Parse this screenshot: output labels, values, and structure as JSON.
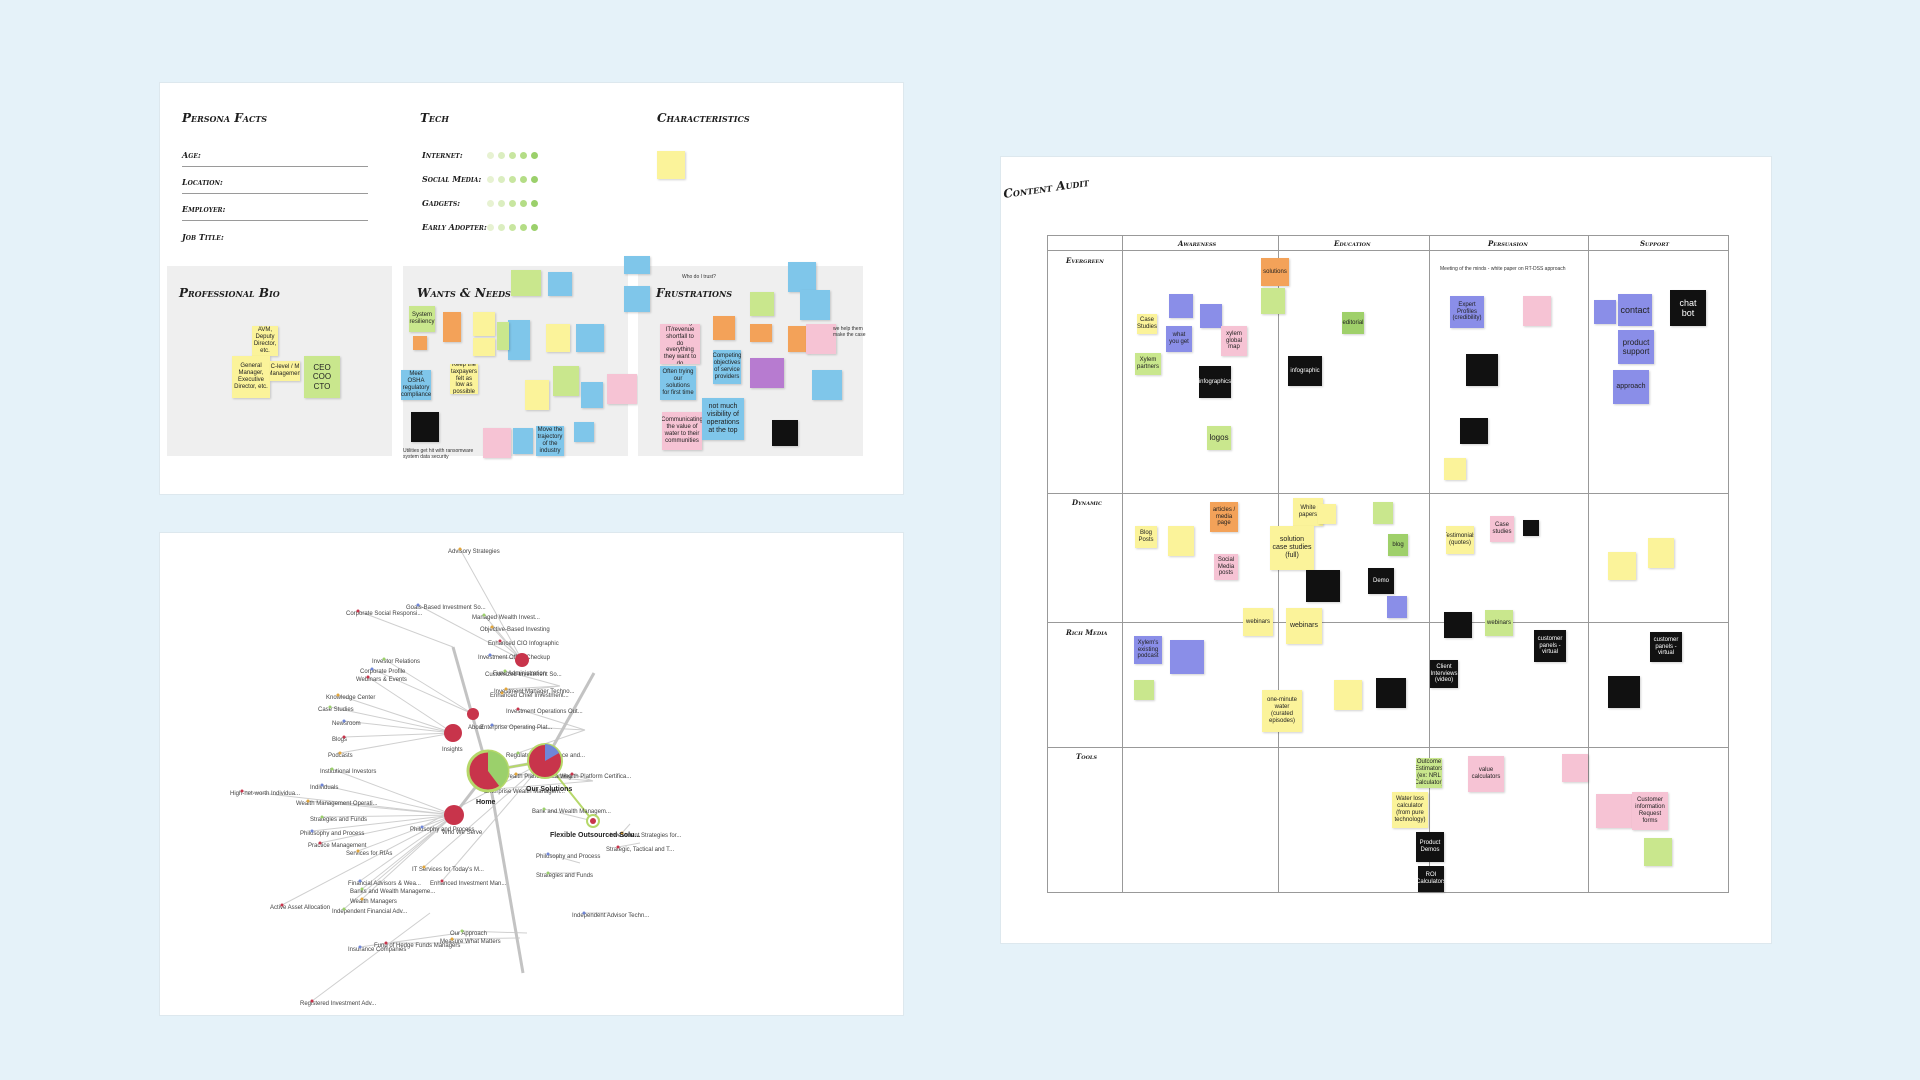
{
  "persona": {
    "facts_title": "Persona Facts",
    "facts": [
      "Age:",
      "Location:",
      "Employer:",
      "Job Title:"
    ],
    "tech_title": "Tech",
    "tech": [
      {
        "label": "Internet:",
        "level": 5
      },
      {
        "label": "Social Media:",
        "level": 5
      },
      {
        "label": "Gadgets:",
        "level": 5
      },
      {
        "label": "Early Adopter:",
        "level": 5
      }
    ],
    "characteristics_title": "Characteristics",
    "bio_title": "Professional Bio",
    "wants_title": "Wants & Needs",
    "frustrations_title": "Frustrations",
    "bio_notes": [
      "AVM, Deputy Director, etc.",
      "General Manager, Executive Director, etc.",
      "C-level / M Management",
      "CEO COO CTO"
    ],
    "wants_notes": [
      "System resiliency",
      "Meet OSHA regulatory compliance",
      "Keep the taxpayers felt as low as possible",
      "Move the trajectory of the industry"
    ],
    "frustrations_notes": [
      "Not enough IT/revenue shortfall to do everything they want to do",
      "Often trying our solutions for first time",
      "Communicating the value of water to their communities",
      "Competing objectives of service providers",
      "not much visibility of operations at the top"
    ],
    "wants_footnote": "Utilities get hit with ransomware system data security",
    "frustrations_header_note": "Who do I trust?",
    "frustrations_side_note": "we help them make the case"
  },
  "sitemap": {
    "center": "Home",
    "hubs": [
      "Our Solutions",
      "Insights",
      "Who We Serve",
      "About",
      "Flexible Outsourced Solu...",
      "Customized Investment So..."
    ],
    "labels": [
      "Advisory Strategies",
      "Corporate Social Responsi...",
      "Goals-Based Investment So...",
      "Managed Wealth Invest...",
      "Objective-Based Investing",
      "Enhanced CIO Infographic",
      "Investment Office Checkup",
      "Fund Administration",
      "Investment Manager Techno...",
      "Investment Operations Out...",
      "Enterprise Operating Plat...",
      "Regulatory Compliance and...",
      "Wealth Platform Learning",
      "Wealth Platform Certifica...",
      "Enterprise Wealth Managem...",
      "Bank and Wealth Managem...",
      "Investment Strategies for...",
      "Strategic, Tactical and T...",
      "Philosophy and Process",
      "Strategies and Funds",
      "IT Services for Today's M...",
      "Enhanced Investment Man...",
      "Independent Advisor Techn...",
      "Our Approach",
      "Measure What Matters",
      "Fund of Hedge Funds Managers",
      "Insurance Companies",
      "Independent Financial Adv...",
      "Wealth Managers",
      "Registered Investment Adv...",
      "Financial Advisors & Wea...",
      "Banks and Wealth Manageme...",
      "Services for RIAs",
      "Practice Management",
      "Philosophy and Process",
      "Strategies and Funds",
      "Wealth Management Operati...",
      "High-net-worth Individua...",
      "Individuals",
      "Institutional Investors",
      "Podcasts",
      "Blogs",
      "Newsroom",
      "Case Studies",
      "Knowledge Center",
      "Webinars & Events",
      "Corporate Profile",
      "Investor Relations",
      "Enhanced Chief Investment...",
      "Active Asset Allocation",
      "Philosophy and Process"
    ]
  },
  "audit": {
    "title": "Content Audit",
    "columns": [
      "Awareness",
      "Education",
      "Persuasion",
      "Support"
    ],
    "rows": [
      "Evergreen",
      "Dynamic",
      "Rich Media",
      "Tools"
    ],
    "header_note": "Meeting of the minds - white paper on RT-DSS approach",
    "notes": {
      "solutions": "solutions",
      "logos": "logos",
      "infographics": "infographics",
      "infographic": "infographic",
      "contact": "contact",
      "chat_bot": "chat bot",
      "product_support": "product support",
      "approach": "approach",
      "expert_profiles": "Expert Profiles (credibility)",
      "xylem_global_map": "xylem global map",
      "what_you_get": "what you get",
      "editorial": "editorial",
      "xylem_partners": "Xylem partners",
      "case_studies": "Case Studies",
      "articles": "articles / media page",
      "white_papers": "White papers",
      "blog_posts": "Blog Posts",
      "solution_case_studies": "solution case studies (full)",
      "blog": "blog",
      "demo": "Demo",
      "social_media_posts": "Social Media posts",
      "webinars": "webinars",
      "xylem_existing_podcast": "Xylem's existing podcast",
      "one_minute_water": "one-minute water (curated episodes)",
      "customer_panels": "customer panels - virtual",
      "client_interviews": "Client Interviews (video)",
      "value_calculators": "value calculators",
      "water_loss_calculator": "Water loss calculator (from pure technology)",
      "product_demos": "Product Demos",
      "customer_info_request": "Customer information Request forms",
      "outcome_estimators": "Outcome Estimators (ex: NRL Calculator)",
      "roi_calculators": "ROI Calculators",
      "testimonials": "Testimonials (quotes)",
      "case_studies_2": "Case studies"
    }
  },
  "colors": {
    "background": "#e5f2f9",
    "yellow": "#fbf39a",
    "green": "#c9e78d",
    "blue": "#7fc6ea",
    "pink": "#f6c3d4",
    "orange": "#f3a259",
    "violet": "#8a8ee8",
    "home_node": "#c8344b",
    "dot_green": "#9bd06b"
  }
}
